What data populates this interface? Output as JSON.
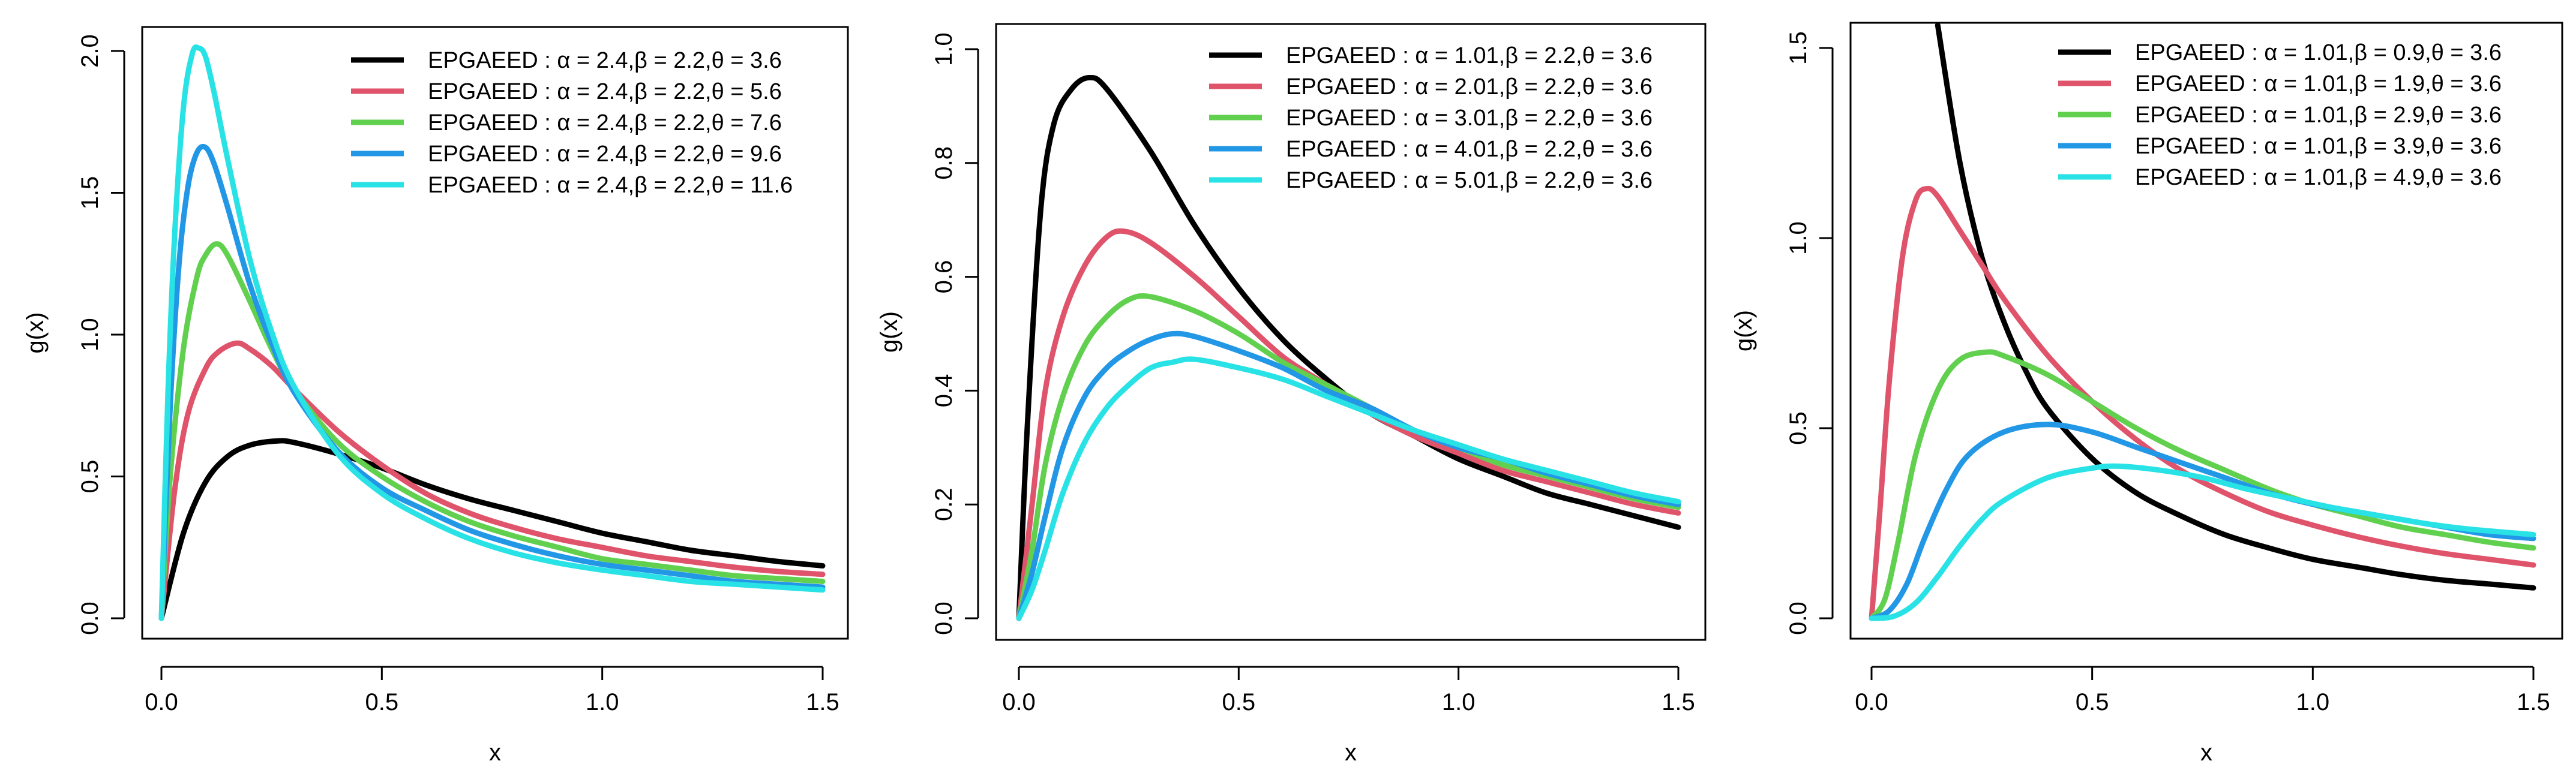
{
  "chart_data": [
    {
      "type": "line",
      "xlabel": "x",
      "ylabel": "g(x)",
      "xlim": [
        0,
        1.5
      ],
      "ylim": [
        0,
        2.03
      ],
      "xticks": [
        0.0,
        0.5,
        1.0,
        1.5
      ],
      "xtick_labels": [
        "0.0",
        "0.5",
        "1.0",
        "1.5"
      ],
      "yticks": [
        0.0,
        0.5,
        1.0,
        1.5,
        2.0
      ],
      "ytick_labels": [
        "0.0",
        "0.5",
        "1.0",
        "1.5",
        "2.0"
      ],
      "legend_position": "top-right",
      "series": [
        {
          "name": "EPGAEED : α = 2.4,β = 2.2,θ = 3.6",
          "color": "#000000",
          "x": [
            0,
            0.05,
            0.1,
            0.15,
            0.2,
            0.26,
            0.3,
            0.4,
            0.5,
            0.6,
            0.7,
            0.8,
            0.9,
            1.0,
            1.1,
            1.2,
            1.3,
            1.4,
            1.5
          ],
          "y": [
            0,
            0.3,
            0.48,
            0.57,
            0.61,
            0.625,
            0.62,
            0.58,
            0.53,
            0.47,
            0.42,
            0.38,
            0.34,
            0.3,
            0.27,
            0.24,
            0.22,
            0.2,
            0.185
          ]
        },
        {
          "name": "EPGAEED : α = 2.4,β = 2.2,θ = 5.6",
          "color": "#DF536B",
          "x": [
            0,
            0.03,
            0.06,
            0.1,
            0.13,
            0.17,
            0.2,
            0.25,
            0.3,
            0.4,
            0.5,
            0.6,
            0.7,
            0.8,
            0.9,
            1.0,
            1.1,
            1.2,
            1.3,
            1.4,
            1.5
          ],
          "y": [
            0,
            0.45,
            0.72,
            0.88,
            0.94,
            0.97,
            0.95,
            0.89,
            0.81,
            0.66,
            0.54,
            0.44,
            0.37,
            0.32,
            0.28,
            0.25,
            0.22,
            0.2,
            0.18,
            0.165,
            0.155
          ]
        },
        {
          "name": "EPGAEED : α = 2.4,β = 2.2,θ = 7.6",
          "color": "#61D04F",
          "x": [
            0,
            0.02,
            0.05,
            0.08,
            0.1,
            0.125,
            0.15,
            0.2,
            0.25,
            0.3,
            0.4,
            0.5,
            0.6,
            0.7,
            0.8,
            0.9,
            1.0,
            1.1,
            1.2,
            1.3,
            1.4,
            1.5
          ],
          "y": [
            0,
            0.5,
            0.95,
            1.2,
            1.28,
            1.32,
            1.28,
            1.12,
            0.95,
            0.81,
            0.62,
            0.5,
            0.41,
            0.34,
            0.29,
            0.25,
            0.21,
            0.19,
            0.17,
            0.15,
            0.14,
            0.13
          ]
        },
        {
          "name": "EPGAEED : α = 2.4,β = 2.2,θ = 9.6",
          "color": "#2297E6",
          "x": [
            0,
            0.02,
            0.04,
            0.06,
            0.08,
            0.1,
            0.12,
            0.15,
            0.2,
            0.25,
            0.3,
            0.4,
            0.5,
            0.6,
            0.7,
            0.8,
            0.9,
            1.0,
            1.1,
            1.2,
            1.3,
            1.4,
            1.5
          ],
          "y": [
            0,
            0.75,
            1.25,
            1.52,
            1.64,
            1.66,
            1.6,
            1.45,
            1.18,
            0.97,
            0.8,
            0.59,
            0.46,
            0.38,
            0.31,
            0.26,
            0.22,
            0.19,
            0.17,
            0.15,
            0.13,
            0.12,
            0.11
          ]
        },
        {
          "name": "EPGAEED : α = 2.4,β = 2.2,θ = 11.6",
          "color": "#28E2E5",
          "x": [
            0,
            0.015,
            0.03,
            0.05,
            0.07,
            0.085,
            0.1,
            0.12,
            0.15,
            0.2,
            0.25,
            0.3,
            0.4,
            0.5,
            0.6,
            0.7,
            0.8,
            0.9,
            1.0,
            1.1,
            1.2,
            1.3,
            1.4,
            1.5
          ],
          "y": [
            0,
            0.8,
            1.35,
            1.8,
            1.99,
            2.01,
            1.98,
            1.85,
            1.62,
            1.27,
            1.01,
            0.82,
            0.58,
            0.44,
            0.35,
            0.28,
            0.23,
            0.195,
            0.17,
            0.15,
            0.13,
            0.12,
            0.11,
            0.1
          ]
        }
      ]
    },
    {
      "type": "line",
      "xlabel": "x",
      "ylabel": "g(x)",
      "xlim": [
        0,
        1.5
      ],
      "ylim": [
        0,
        1.0
      ],
      "xticks": [
        0.0,
        0.5,
        1.0,
        1.5
      ],
      "xtick_labels": [
        "0.0",
        "0.5",
        "1.0",
        "1.5"
      ],
      "yticks": [
        0.0,
        0.2,
        0.4,
        0.6,
        0.8,
        1.0
      ],
      "ytick_labels": [
        "0.0",
        "0.2",
        "0.4",
        "0.6",
        "0.8",
        "1.0"
      ],
      "legend_position": "top-right",
      "series": [
        {
          "name": "EPGAEED : α = 1.01,β = 2.2,θ = 3.6",
          "color": "#000000",
          "x": [
            0,
            0.02,
            0.05,
            0.08,
            0.12,
            0.16,
            0.2,
            0.3,
            0.4,
            0.5,
            0.6,
            0.7,
            0.8,
            0.9,
            1.0,
            1.1,
            1.2,
            1.3,
            1.4,
            1.5
          ],
          "y": [
            0,
            0.35,
            0.72,
            0.87,
            0.93,
            0.95,
            0.93,
            0.82,
            0.69,
            0.58,
            0.49,
            0.42,
            0.36,
            0.32,
            0.28,
            0.25,
            0.22,
            0.2,
            0.18,
            0.16
          ]
        },
        {
          "name": "EPGAEED : α = 2.01,β = 2.2,θ = 3.6",
          "color": "#DF536B",
          "x": [
            0,
            0.03,
            0.06,
            0.1,
            0.15,
            0.2,
            0.24,
            0.3,
            0.4,
            0.5,
            0.6,
            0.7,
            0.8,
            0.9,
            1.0,
            1.1,
            1.2,
            1.3,
            1.4,
            1.5
          ],
          "y": [
            0,
            0.2,
            0.4,
            0.53,
            0.62,
            0.67,
            0.68,
            0.66,
            0.6,
            0.53,
            0.46,
            0.41,
            0.36,
            0.32,
            0.29,
            0.26,
            0.24,
            0.22,
            0.2,
            0.185
          ]
        },
        {
          "name": "EPGAEED : α = 3.01,β = 2.2,θ = 3.6",
          "color": "#61D04F",
          "x": [
            0,
            0.03,
            0.06,
            0.1,
            0.15,
            0.2,
            0.25,
            0.3,
            0.4,
            0.5,
            0.6,
            0.7,
            0.8,
            0.9,
            1.0,
            1.1,
            1.2,
            1.3,
            1.4,
            1.5
          ],
          "y": [
            0,
            0.12,
            0.27,
            0.39,
            0.48,
            0.53,
            0.56,
            0.565,
            0.54,
            0.5,
            0.45,
            0.41,
            0.37,
            0.33,
            0.3,
            0.27,
            0.25,
            0.23,
            0.21,
            0.195
          ]
        },
        {
          "name": "EPGAEED : α = 4.01,β = 2.2,θ = 3.6",
          "color": "#2297E6",
          "x": [
            0,
            0.03,
            0.06,
            0.1,
            0.15,
            0.2,
            0.25,
            0.3,
            0.35,
            0.4,
            0.5,
            0.6,
            0.7,
            0.8,
            0.9,
            1.0,
            1.1,
            1.2,
            1.3,
            1.4,
            1.5
          ],
          "y": [
            0,
            0.08,
            0.18,
            0.3,
            0.39,
            0.44,
            0.47,
            0.49,
            0.5,
            0.495,
            0.47,
            0.44,
            0.4,
            0.37,
            0.33,
            0.3,
            0.28,
            0.255,
            0.235,
            0.215,
            0.2
          ]
        },
        {
          "name": "EPGAEED : α = 5.01,β = 2.2,θ = 3.6",
          "color": "#28E2E5",
          "x": [
            0,
            0.03,
            0.06,
            0.1,
            0.15,
            0.2,
            0.25,
            0.3,
            0.35,
            0.4,
            0.5,
            0.6,
            0.7,
            0.8,
            0.9,
            1.0,
            1.1,
            1.2,
            1.3,
            1.4,
            1.5
          ],
          "y": [
            0,
            0.05,
            0.12,
            0.22,
            0.31,
            0.37,
            0.41,
            0.44,
            0.45,
            0.455,
            0.44,
            0.42,
            0.39,
            0.36,
            0.33,
            0.305,
            0.28,
            0.26,
            0.24,
            0.22,
            0.205
          ]
        }
      ]
    },
    {
      "type": "line",
      "xlabel": "x",
      "ylabel": "g(x)",
      "xlim": [
        0,
        1.5
      ],
      "ylim": [
        0,
        1.56
      ],
      "xticks": [
        0.0,
        0.5,
        1.0,
        1.5
      ],
      "xtick_labels": [
        "0.0",
        "0.5",
        "1.0",
        "1.5"
      ],
      "yticks": [
        0.0,
        0.5,
        1.0,
        1.5
      ],
      "ytick_labels": [
        "0.0",
        "0.5",
        "1.0",
        "1.5"
      ],
      "legend_position": "top-right",
      "series": [
        {
          "name": "EPGAEED : α = 1.01,β = 0.9,θ = 3.6",
          "color": "#000000",
          "x": [
            0.15,
            0.2,
            0.25,
            0.3,
            0.35,
            0.4,
            0.5,
            0.6,
            0.7,
            0.8,
            0.9,
            1.0,
            1.1,
            1.2,
            1.3,
            1.4,
            1.5
          ],
          "y": [
            1.56,
            1.2,
            0.95,
            0.78,
            0.65,
            0.55,
            0.42,
            0.33,
            0.27,
            0.22,
            0.185,
            0.155,
            0.135,
            0.115,
            0.1,
            0.09,
            0.08
          ]
        },
        {
          "name": "EPGAEED : α = 1.01,β = 1.9,θ = 3.6",
          "color": "#DF536B",
          "x": [
            0,
            0.02,
            0.04,
            0.07,
            0.1,
            0.125,
            0.15,
            0.2,
            0.25,
            0.3,
            0.4,
            0.5,
            0.6,
            0.7,
            0.8,
            0.9,
            1.0,
            1.1,
            1.2,
            1.3,
            1.4,
            1.5
          ],
          "y": [
            0,
            0.3,
            0.62,
            0.95,
            1.1,
            1.13,
            1.11,
            1.02,
            0.93,
            0.84,
            0.69,
            0.57,
            0.47,
            0.39,
            0.33,
            0.28,
            0.245,
            0.215,
            0.19,
            0.17,
            0.155,
            0.14
          ]
        },
        {
          "name": "EPGAEED : α = 1.01,β = 2.9,θ = 3.6",
          "color": "#61D04F",
          "x": [
            0,
            0.03,
            0.06,
            0.1,
            0.15,
            0.2,
            0.26,
            0.3,
            0.4,
            0.5,
            0.6,
            0.7,
            0.8,
            0.9,
            1.0,
            1.1,
            1.2,
            1.3,
            1.4,
            1.5
          ],
          "y": [
            0,
            0.05,
            0.2,
            0.43,
            0.6,
            0.68,
            0.7,
            0.69,
            0.64,
            0.57,
            0.5,
            0.44,
            0.39,
            0.34,
            0.3,
            0.27,
            0.24,
            0.22,
            0.2,
            0.185
          ]
        },
        {
          "name": "EPGAEED : α = 1.01,β = 3.9,θ = 3.6",
          "color": "#2297E6",
          "x": [
            0,
            0.04,
            0.08,
            0.12,
            0.17,
            0.22,
            0.3,
            0.4,
            0.5,
            0.6,
            0.7,
            0.8,
            0.9,
            1.0,
            1.1,
            1.2,
            1.3,
            1.4,
            1.5
          ],
          "y": [
            0,
            0.02,
            0.09,
            0.21,
            0.34,
            0.43,
            0.49,
            0.51,
            0.49,
            0.45,
            0.41,
            0.37,
            0.33,
            0.3,
            0.28,
            0.26,
            0.24,
            0.22,
            0.21
          ]
        },
        {
          "name": "EPGAEED : α = 1.01,β = 4.9,θ = 3.6",
          "color": "#28E2E5",
          "x": [
            0,
            0.05,
            0.1,
            0.15,
            0.2,
            0.25,
            0.3,
            0.4,
            0.5,
            0.56,
            0.65,
            0.75,
            0.85,
            0.95,
            1.05,
            1.15,
            1.25,
            1.35,
            1.5
          ],
          "y": [
            0,
            0.005,
            0.04,
            0.11,
            0.19,
            0.26,
            0.31,
            0.37,
            0.395,
            0.4,
            0.39,
            0.37,
            0.34,
            0.315,
            0.29,
            0.27,
            0.25,
            0.235,
            0.22
          ]
        }
      ]
    }
  ]
}
